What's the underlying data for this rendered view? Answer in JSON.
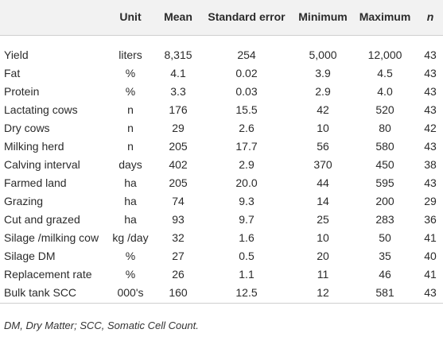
{
  "table": {
    "columns": [
      "Unit",
      "Mean",
      "Standard error",
      "Minimum",
      "Maximum",
      "n"
    ],
    "rows": [
      [
        "Yield",
        "liters",
        "8,315",
        "254",
        "5,000",
        "12,000",
        "43"
      ],
      [
        "Fat",
        "%",
        "4.1",
        "0.02",
        "3.9",
        "4.5",
        "43"
      ],
      [
        "Protein",
        "%",
        "3.3",
        "0.03",
        "2.9",
        "4.0",
        "43"
      ],
      [
        "Lactating cows",
        "n",
        "176",
        "15.5",
        "42",
        "520",
        "43"
      ],
      [
        "Dry cows",
        "n",
        "29",
        "2.6",
        "10",
        "80",
        "42"
      ],
      [
        "Milking herd",
        "n",
        "205",
        "17.7",
        "56",
        "580",
        "43"
      ],
      [
        "Calving interval",
        "days",
        "402",
        "2.9",
        "370",
        "450",
        "38"
      ],
      [
        "Farmed land",
        "ha",
        "205",
        "20.0",
        "44",
        "595",
        "43"
      ],
      [
        "Grazing",
        "ha",
        "74",
        "9.3",
        "14",
        "200",
        "29"
      ],
      [
        "Cut and grazed",
        "ha",
        "93",
        "9.7",
        "25",
        "283",
        "36"
      ],
      [
        "Silage /milking cow",
        "kg /day",
        "32",
        "1.6",
        "10",
        "50",
        "41"
      ],
      [
        "Silage DM",
        "%",
        "27",
        "0.5",
        "20",
        "35",
        "40"
      ],
      [
        "Replacement rate",
        "%",
        "26",
        "1.1",
        "11",
        "46",
        "41"
      ],
      [
        "Bulk tank SCC",
        "000's",
        "160",
        "12.5",
        "12",
        "581",
        "43"
      ]
    ],
    "footnote": "DM, Dry Matter; SCC, Somatic Cell Count."
  }
}
